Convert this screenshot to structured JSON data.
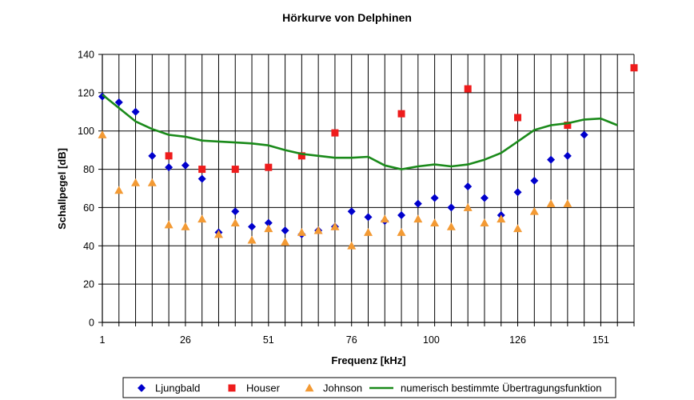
{
  "chart_data": {
    "type": "scatter",
    "title": "Hörkurve von Delphinen",
    "xlabel": "Frequenz [kHz]",
    "ylabel": "Schallpegel [dB]",
    "xlim": [
      1,
      161
    ],
    "ylim": [
      0,
      140
    ],
    "x_ticks": [
      1,
      26,
      51,
      76,
      100,
      126,
      151
    ],
    "y_ticks": [
      0,
      20,
      40,
      60,
      80,
      100,
      120,
      140
    ],
    "x_grid_step": 5,
    "grid": true,
    "legend_position": "bottom",
    "series": [
      {
        "name": "Ljungbald",
        "marker": "diamond",
        "color": "#0000cc",
        "points": [
          [
            1,
            118
          ],
          [
            6,
            115
          ],
          [
            11,
            110
          ],
          [
            16,
            87
          ],
          [
            21,
            81
          ],
          [
            26,
            82
          ],
          [
            31,
            75
          ],
          [
            36,
            47
          ],
          [
            41,
            58
          ],
          [
            46,
            50
          ],
          [
            51,
            52
          ],
          [
            56,
            48
          ],
          [
            61,
            46
          ],
          [
            66,
            48
          ],
          [
            71,
            50
          ],
          [
            76,
            58
          ],
          [
            81,
            55
          ],
          [
            86,
            53
          ],
          [
            91,
            56
          ],
          [
            96,
            62
          ],
          [
            101,
            65
          ],
          [
            106,
            60
          ],
          [
            111,
            71
          ],
          [
            116,
            65
          ],
          [
            121,
            56
          ],
          [
            126,
            68
          ],
          [
            131,
            74
          ],
          [
            136,
            85
          ],
          [
            141,
            87
          ],
          [
            146,
            98
          ]
        ]
      },
      {
        "name": "Houser",
        "marker": "square",
        "color": "#ee1c1c",
        "points": [
          [
            21,
            87
          ],
          [
            31,
            80
          ],
          [
            41,
            80
          ],
          [
            51,
            81
          ],
          [
            61,
            87
          ],
          [
            71,
            99
          ],
          [
            91,
            109
          ],
          [
            111,
            122
          ],
          [
            126,
            107
          ],
          [
            141,
            103
          ],
          [
            161,
            133
          ]
        ]
      },
      {
        "name": "Johnson",
        "marker": "triangle",
        "color": "#f39a34",
        "points": [
          [
            1,
            98
          ],
          [
            6,
            69
          ],
          [
            11,
            73
          ],
          [
            16,
            73
          ],
          [
            21,
            51
          ],
          [
            26,
            50
          ],
          [
            31,
            54
          ],
          [
            36,
            46
          ],
          [
            41,
            52
          ],
          [
            46,
            43
          ],
          [
            51,
            49
          ],
          [
            56,
            42
          ],
          [
            61,
            47
          ],
          [
            66,
            48
          ],
          [
            71,
            50
          ],
          [
            76,
            40
          ],
          [
            81,
            47
          ],
          [
            86,
            54
          ],
          [
            91,
            47
          ],
          [
            96,
            54
          ],
          [
            101,
            52
          ],
          [
            106,
            50
          ],
          [
            111,
            60
          ],
          [
            116,
            52
          ],
          [
            121,
            54
          ],
          [
            126,
            49
          ],
          [
            131,
            58
          ],
          [
            136,
            62
          ],
          [
            141,
            62
          ]
        ]
      },
      {
        "name": "numerisch bestimmte Übertragungsfunktion",
        "marker": "line",
        "color": "#1a8a1a",
        "points": [
          [
            1,
            119
          ],
          [
            6,
            112
          ],
          [
            11,
            105
          ],
          [
            16,
            101
          ],
          [
            21,
            98
          ],
          [
            26,
            97
          ],
          [
            31,
            95
          ],
          [
            36,
            94.5
          ],
          [
            41,
            94
          ],
          [
            46,
            93.5
          ],
          [
            51,
            92.5
          ],
          [
            56,
            90
          ],
          [
            61,
            88
          ],
          [
            66,
            87
          ],
          [
            71,
            86
          ],
          [
            76,
            86
          ],
          [
            81,
            86.5
          ],
          [
            86,
            82
          ],
          [
            91,
            80
          ],
          [
            96,
            81.5
          ],
          [
            101,
            82.5
          ],
          [
            106,
            81.5
          ],
          [
            111,
            82.5
          ],
          [
            116,
            85
          ],
          [
            121,
            88.5
          ],
          [
            126,
            94.5
          ],
          [
            131,
            100.5
          ],
          [
            136,
            103
          ],
          [
            141,
            104
          ],
          [
            146,
            106
          ],
          [
            151,
            106.5
          ],
          [
            156,
            103
          ]
        ]
      }
    ]
  }
}
